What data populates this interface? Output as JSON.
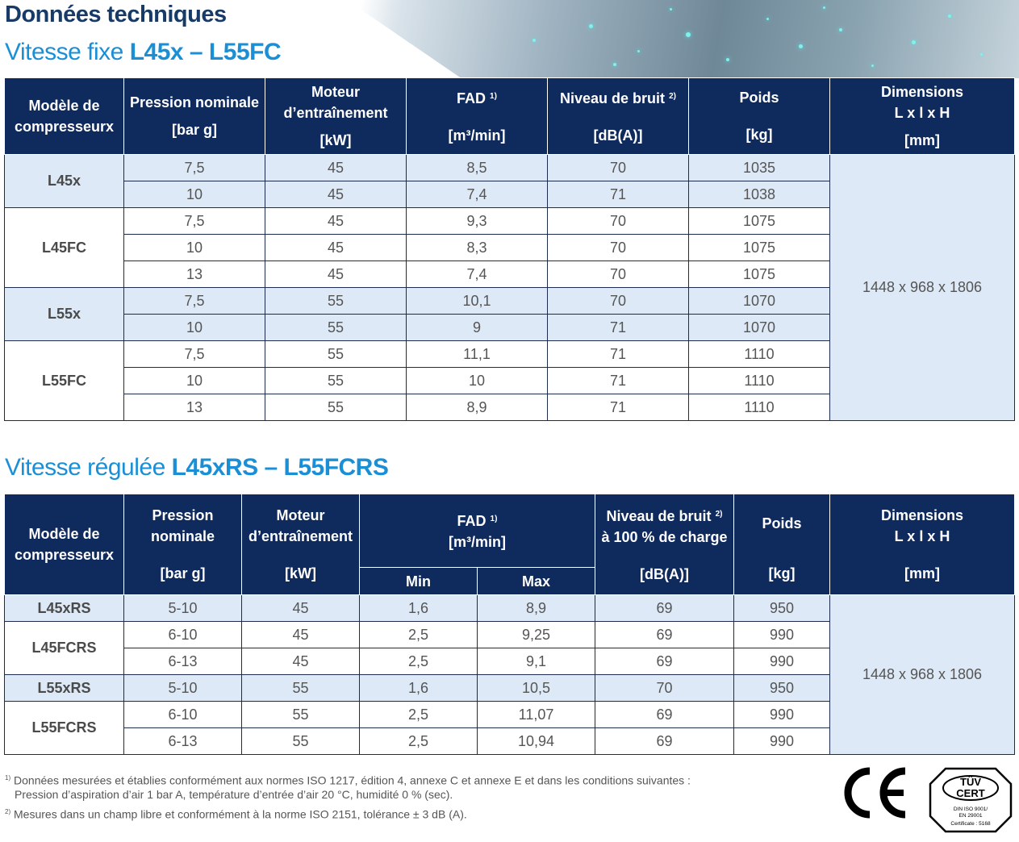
{
  "header": {
    "title": "Données techniques"
  },
  "fixed": {
    "title_prefix": "Vitesse fixe ",
    "title_models": "L45x – L55FC",
    "head": {
      "model": "Modèle de compresseurx",
      "pressure": "Pression nominale",
      "pressure_unit": "[bar g]",
      "motor": "Moteur d’entraînement",
      "motor_unit": "[kW]",
      "fad": "FAD",
      "fad_note": "1)",
      "fad_unit": "[m³/min]",
      "noise": "Niveau de bruit",
      "noise_note": "2)",
      "noise_unit": "[dB(A)]",
      "weight": "Poids",
      "weight_unit": "[kg]",
      "dim": "Dimensions",
      "dim_sub": "L x l x H",
      "dim_unit": "[mm]"
    },
    "dimensions": "1448 x 968 x 1806",
    "groups": [
      {
        "model": "L45x",
        "rows": [
          [
            "7,5",
            "45",
            "8,5",
            "70",
            "1035"
          ],
          [
            "10",
            "45",
            "7,4",
            "71",
            "1038"
          ]
        ]
      },
      {
        "model": "L45FC",
        "rows": [
          [
            "7,5",
            "45",
            "9,3",
            "70",
            "1075"
          ],
          [
            "10",
            "45",
            "8,3",
            "70",
            "1075"
          ],
          [
            "13",
            "45",
            "7,4",
            "70",
            "1075"
          ]
        ]
      },
      {
        "model": "L55x",
        "rows": [
          [
            "7,5",
            "55",
            "10,1",
            "70",
            "1070"
          ],
          [
            "10",
            "55",
            "9",
            "71",
            "1070"
          ]
        ]
      },
      {
        "model": "L55FC",
        "rows": [
          [
            "7,5",
            "55",
            "11,1",
            "71",
            "1110"
          ],
          [
            "10",
            "55",
            "10",
            "71",
            "1110"
          ],
          [
            "13",
            "55",
            "8,9",
            "71",
            "1110"
          ]
        ]
      }
    ]
  },
  "regulated": {
    "title_prefix": "Vitesse régulée ",
    "title_models": "L45xRS – L55FCRS",
    "head": {
      "model": "Modèle de compresseurx",
      "pressure": "Pression nominale",
      "pressure_unit": "[bar g]",
      "motor": "Moteur d’entraînement",
      "motor_unit": "[kW]",
      "fad": "FAD",
      "fad_note": "1)",
      "fad_unit": "[m³/min]",
      "fad_min": "Min",
      "fad_max": "Max",
      "noise": "Niveau de bruit",
      "noise_note": "2)",
      "noise_load": "à 100 % de charge",
      "noise_unit": "[dB(A)]",
      "weight": "Poids",
      "weight_unit": "[kg]",
      "dim": "Dimensions",
      "dim_sub": "L x l x H",
      "dim_unit": "[mm]"
    },
    "dimensions": "1448 x 968 x 1806",
    "groups": [
      {
        "model": "L45xRS",
        "rows": [
          [
            "5-10",
            "45",
            "1,6",
            "8,9",
            "69",
            "950"
          ]
        ]
      },
      {
        "model": "L45FCRS",
        "rows": [
          [
            "6-10",
            "45",
            "2,5",
            "9,25",
            "69",
            "990"
          ],
          [
            "6-13",
            "45",
            "2,5",
            "9,1",
            "69",
            "990"
          ]
        ]
      },
      {
        "model": "L55xRS",
        "rows": [
          [
            "5-10",
            "55",
            "1,6",
            "10,5",
            "70",
            "950"
          ]
        ]
      },
      {
        "model": "L55FCRS",
        "rows": [
          [
            "6-10",
            "55",
            "2,5",
            "11,07",
            "69",
            "990"
          ],
          [
            "6-13",
            "55",
            "2,5",
            "10,94",
            "69",
            "990"
          ]
        ]
      }
    ]
  },
  "footnotes": {
    "n1_mark": "1)",
    "n1_line1": " Données mesurées et établies conformément aux normes ISO 1217, édition 4, annexe C et annexe E et dans les conditions suivantes :",
    "n1_line2": "Pression d’aspiration d’air 1 bar A, température d’entrée d’air 20 °C, humidité 0 % (sec).",
    "n2_mark": "2)",
    "n2_line1": " Mesures dans un champ libre et conformément à la norme ISO 2151, tolérance ± 3 dB (A)."
  },
  "logos": {
    "ce": "CE",
    "tuv": "TÜV",
    "tuv_cert": "CERT",
    "tuv_line1": "DIN ISO 9001/",
    "tuv_line2": "EN 29001",
    "tuv_line3": "Certificate : 5168"
  },
  "colors": {
    "header_bg": "#0f2a5c",
    "shade": "#dde9f6",
    "title_blue": "#1a8fd6",
    "title_navy": "#173a66"
  }
}
